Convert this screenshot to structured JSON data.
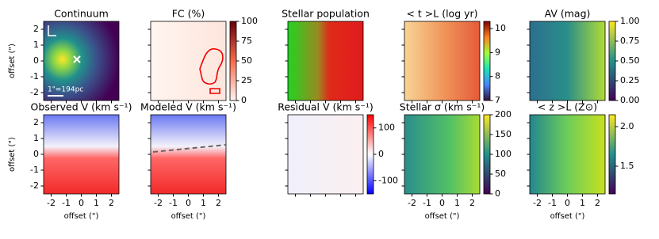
{
  "chart_data": [
    {
      "type": "image",
      "title": "Continuum",
      "xlim": [
        -2.5,
        2.5
      ],
      "ylim": [
        -2.5,
        2.5
      ],
      "xticks": [
        -2,
        -1,
        0,
        1,
        2
      ],
      "yticks": [
        -2,
        -1,
        0,
        1,
        2
      ],
      "ylabel": "offset (\")",
      "annotation": "1\"=194pc"
    },
    {
      "type": "image",
      "title": "FC (%)",
      "xlim": [
        -2.5,
        2.5
      ],
      "ylim": [
        -2.5,
        2.5
      ],
      "xticks": [
        -2,
        -1,
        0,
        1,
        2
      ],
      "yticks": [
        -2,
        -1,
        0,
        1,
        2
      ],
      "clim": [
        0,
        100
      ],
      "cticks": [
        0,
        25,
        50,
        75,
        100
      ]
    },
    {
      "type": "image",
      "title": "Stellar population",
      "xlim": [
        -2.5,
        2.5
      ],
      "ylim": [
        -2.5,
        2.5
      ],
      "xticks": [
        -2,
        -1,
        0,
        1,
        2
      ],
      "yticks": [
        -2,
        -1,
        0,
        1,
        2
      ]
    },
    {
      "type": "image",
      "title": "< t >L (log yr)",
      "xlim": [
        -2.5,
        2.5
      ],
      "ylim": [
        -2.5,
        2.5
      ],
      "xticks": [
        -2,
        -1,
        0,
        1,
        2
      ],
      "yticks": [
        -2,
        -1,
        0,
        1,
        2
      ],
      "clim": [
        7,
        10.3
      ],
      "cticks": [
        7,
        8,
        9,
        10
      ]
    },
    {
      "type": "image",
      "title": "AV (mag)",
      "xlim": [
        -2.5,
        2.5
      ],
      "ylim": [
        -2.5,
        2.5
      ],
      "xticks": [
        -2,
        -1,
        0,
        1,
        2
      ],
      "yticks": [
        -2,
        -1,
        0,
        1,
        2
      ],
      "clim": [
        0,
        1
      ],
      "cticks": [
        {
          "value": 0,
          "label": "0.00"
        },
        {
          "value": 0.25,
          "label": "0.25"
        },
        {
          "value": 0.5,
          "label": "0.50"
        },
        {
          "value": 0.75,
          "label": "0.75"
        },
        {
          "value": 1,
          "label": "1.00"
        }
      ]
    },
    {
      "type": "image",
      "title": "Observed V (km s⁻¹)",
      "xlim": [
        -2.5,
        2.5
      ],
      "ylim": [
        -2.5,
        2.5
      ],
      "xticks": [
        -2,
        -1,
        0,
        1,
        2
      ],
      "yticks": [
        -2,
        -1,
        0,
        1,
        2
      ],
      "xlabel": "offset (\")",
      "ylabel": "offset (\")"
    },
    {
      "type": "image",
      "title": "Modeled V (km s⁻¹)",
      "xlim": [
        -2.5,
        2.5
      ],
      "ylim": [
        -2.5,
        2.5
      ],
      "xticks": [
        -2,
        -1,
        0,
        1,
        2
      ],
      "yticks": [
        -2,
        -1,
        0,
        1,
        2
      ],
      "xlabel": "offset (\")"
    },
    {
      "type": "image",
      "title": "Residual V (km s⁻¹)",
      "xlim": [
        -2.5,
        2.5
      ],
      "ylim": [
        -2.5,
        2.5
      ],
      "xticks": [
        -2,
        -1,
        0,
        1,
        2
      ],
      "yticks": [
        -2,
        -1,
        0,
        1,
        2
      ],
      "clim": [
        -150,
        150
      ],
      "cticks": [
        -100,
        0,
        100
      ]
    },
    {
      "type": "image",
      "title": "Stellar σ (km s⁻¹)",
      "xlim": [
        -2.5,
        2.5
      ],
      "ylim": [
        -2.5,
        2.5
      ],
      "xticks": [
        -2,
        -1,
        0,
        1,
        2
      ],
      "yticks": [
        -2,
        -1,
        0,
        1,
        2
      ],
      "xlabel": "offset (\")",
      "clim": [
        0,
        200
      ],
      "cticks": [
        0,
        50,
        100,
        150,
        200
      ]
    },
    {
      "type": "image",
      "title": "< z >L (Z⊙)",
      "xlim": [
        -2.5,
        2.5
      ],
      "ylim": [
        -2.5,
        2.5
      ],
      "xticks": [
        -2,
        -1,
        0,
        1,
        2
      ],
      "yticks": [
        -2,
        -1,
        0,
        1,
        2
      ],
      "xlabel": "offset (\")",
      "clim": [
        1.15,
        2.15
      ],
      "cticks": [
        1.5,
        {
          "value": 2,
          "label": "2.0"
        }
      ]
    }
  ]
}
